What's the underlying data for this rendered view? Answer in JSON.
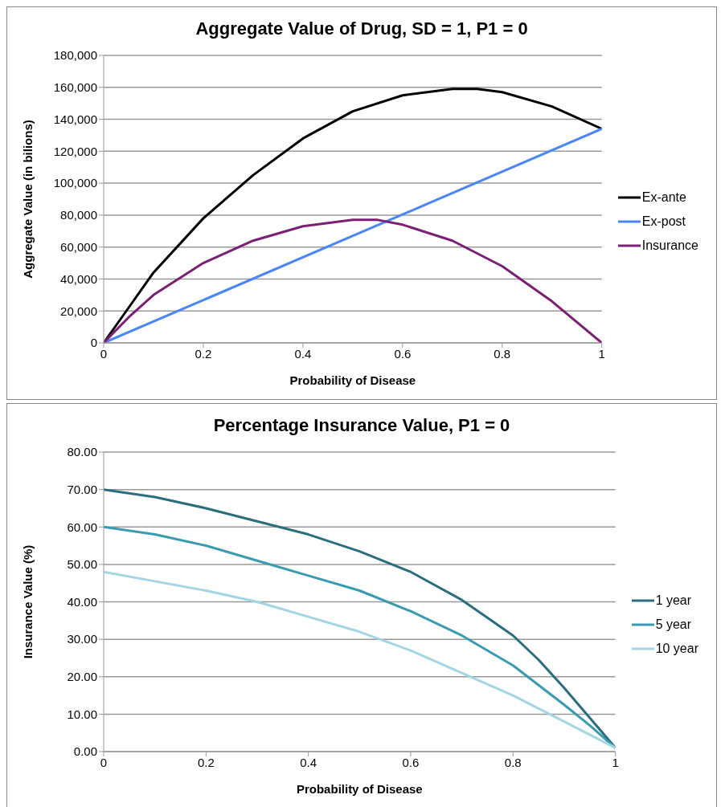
{
  "chart_data": [
    {
      "type": "line",
      "title": "Aggregate Value of Drug, SD = 1, P1 = 0",
      "xlabel": "Probability of Disease",
      "ylabel": "Aggregate Value (in bilions)",
      "xlim": [
        0,
        1
      ],
      "xticks": [
        0,
        0.2,
        0.4,
        0.6,
        0.8,
        1
      ],
      "ylim": [
        0,
        180000
      ],
      "yticks": [
        {
          "value": 0,
          "label": "0"
        },
        {
          "value": 20000,
          "label": "20,000"
        },
        {
          "value": 40000,
          "label": "40,000"
        },
        {
          "value": 60000,
          "label": "60,000"
        },
        {
          "value": 80000,
          "label": "80,000"
        },
        {
          "value": 100000,
          "label": "100,000"
        },
        {
          "value": 120000,
          "label": "120,000"
        },
        {
          "value": 140000,
          "label": "140,000"
        },
        {
          "value": 160000,
          "label": "160,000"
        },
        {
          "value": 180000,
          "label": "180,000"
        }
      ],
      "grid": "y",
      "legend": "right",
      "marker": "none",
      "line_style": "solid",
      "series": [
        {
          "name": "Ex-ante",
          "color": "#000000",
          "x": [
            0,
            0.05,
            0.1,
            0.2,
            0.3,
            0.4,
            0.5,
            0.6,
            0.7,
            0.75,
            0.8,
            0.9,
            1
          ],
          "values": [
            0,
            22000,
            44000,
            78000,
            105000,
            128000,
            145000,
            155000,
            159000,
            159000,
            157000,
            148000,
            134000
          ]
        },
        {
          "name": "Ex-post",
          "color": "#4a86f7",
          "x": [
            0,
            1
          ],
          "values": [
            0,
            134000
          ]
        },
        {
          "name": "Insurance",
          "color": "#7b1f74",
          "x": [
            0,
            0.05,
            0.1,
            0.2,
            0.3,
            0.4,
            0.5,
            0.55,
            0.6,
            0.7,
            0.8,
            0.9,
            1
          ],
          "values": [
            0,
            16000,
            30000,
            50000,
            64000,
            73000,
            77000,
            77000,
            74000,
            64000,
            48000,
            26000,
            0
          ]
        }
      ]
    },
    {
      "type": "line",
      "title": "Percentage Insurance Value, P1 = 0",
      "xlabel": "Probability of Disease",
      "ylabel": "Insurance Value (%)",
      "xlim": [
        0,
        1
      ],
      "xticks": [
        0,
        0.2,
        0.4,
        0.6,
        0.8,
        1
      ],
      "ylim": [
        0,
        80
      ],
      "yticks": [
        {
          "value": 0,
          "label": "0.00"
        },
        {
          "value": 10,
          "label": "10.00"
        },
        {
          "value": 20,
          "label": "20.00"
        },
        {
          "value": 30,
          "label": "30.00"
        },
        {
          "value": 40,
          "label": "40.00"
        },
        {
          "value": 50,
          "label": "50.00"
        },
        {
          "value": 60,
          "label": "60.00"
        },
        {
          "value": 70,
          "label": "70.00"
        },
        {
          "value": 80,
          "label": "80.00"
        }
      ],
      "grid": "y",
      "legend": "right",
      "marker": "none",
      "line_style": "solid",
      "series": [
        {
          "name": "1 year",
          "color": "#2a6e7e",
          "x": [
            0,
            0.1,
            0.2,
            0.3,
            0.4,
            0.5,
            0.6,
            0.7,
            0.8,
            0.85,
            0.9,
            0.95,
            1
          ],
          "values": [
            70,
            68,
            65,
            61.5,
            58,
            53.5,
            48,
            40.5,
            31,
            24.5,
            17,
            9,
            1
          ]
        },
        {
          "name": "5 year",
          "color": "#3a9bb0",
          "x": [
            0,
            0.1,
            0.2,
            0.3,
            0.4,
            0.5,
            0.6,
            0.7,
            0.8,
            0.9,
            0.95,
            1
          ],
          "values": [
            60,
            58,
            55,
            51,
            47,
            43,
            37.5,
            31,
            23,
            12.5,
            7,
            1
          ]
        },
        {
          "name": "10 year",
          "color": "#a3d5e3",
          "x": [
            0,
            0.1,
            0.2,
            0.3,
            0.4,
            0.5,
            0.6,
            0.7,
            0.8,
            0.9,
            1
          ],
          "values": [
            48,
            45.5,
            43,
            40,
            36,
            32,
            27,
            21,
            15,
            8,
            1
          ]
        }
      ]
    }
  ]
}
